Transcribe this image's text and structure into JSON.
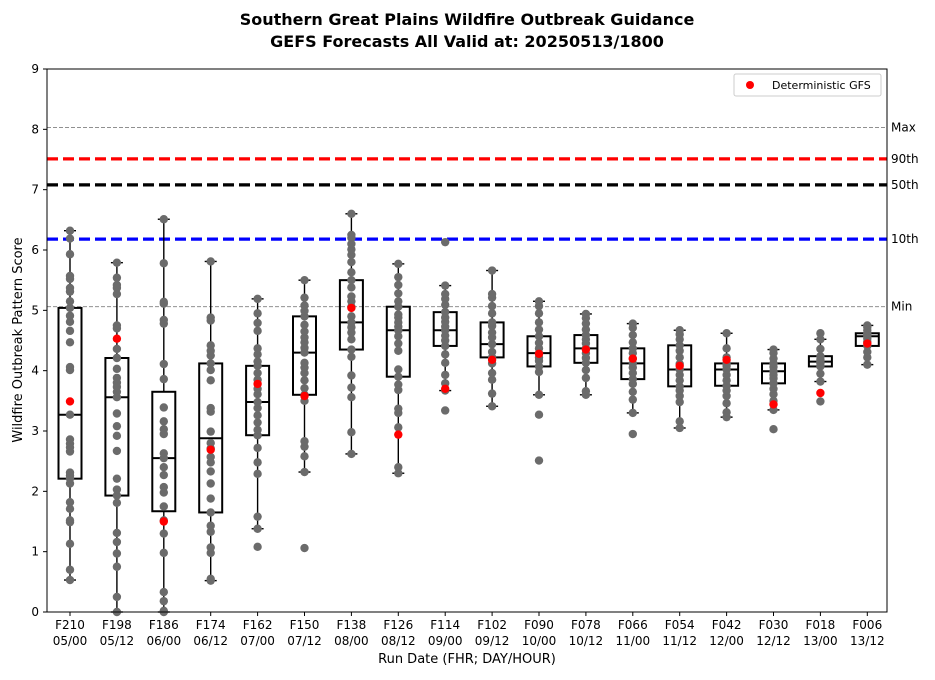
{
  "chart_data": {
    "type": "box",
    "title": "Southern Great Plains Wildfire Outbreak Guidance",
    "subtitle": "GEFS Forecasts All Valid at: 20250513/1800",
    "xlabel": "Run Date (FHR; DAY/HOUR)",
    "ylabel": "Wildfire Outbreak Pattern Score",
    "ylim": [
      0,
      9
    ],
    "yticks": [
      "0",
      "1",
      "2",
      "3",
      "4",
      "5",
      "6",
      "7",
      "8",
      "9"
    ],
    "grid": false,
    "legend": {
      "placement": "top-right",
      "label": "Deterministic GFS",
      "color": "#ff0000"
    },
    "colors": {
      "member": "#6b6b6b",
      "deterministic": "#ff0000",
      "box": "#000000"
    },
    "reference_lines": [
      {
        "label": "Max",
        "value": 8.03,
        "style": "dashed-thin",
        "color": "#808080"
      },
      {
        "label": "90th",
        "value": 7.51,
        "style": "dashed-thick",
        "color": "#ff0000"
      },
      {
        "label": "50th",
        "value": 7.08,
        "style": "dashed-thick",
        "color": "#000000"
      },
      {
        "label": "10th",
        "value": 6.18,
        "style": "dashed-thick",
        "color": "#0000ff"
      },
      {
        "label": "Min",
        "value": 5.06,
        "style": "dashed-thin",
        "color": "#808080"
      }
    ],
    "categories": [
      {
        "fhr": "F210",
        "date": "05/00",
        "wlo": 0.53,
        "q1": 2.21,
        "median": 3.27,
        "q3": 5.04,
        "whi": 6.32,
        "det": 3.49,
        "members": [
          0.53,
          0.7,
          1.13,
          1.49,
          1.52,
          1.71,
          1.82,
          2.13,
          2.21,
          2.26,
          2.31,
          2.66,
          2.73,
          2.79,
          2.86,
          3.27,
          4.01,
          4.06,
          4.47,
          4.66,
          4.81,
          4.91,
          5.04,
          5.15,
          5.31,
          5.37,
          5.52,
          5.57,
          5.93,
          6.19,
          6.32
        ]
      },
      {
        "fhr": "F198",
        "date": "05/12",
        "wlo": 0.0,
        "q1": 1.93,
        "median": 3.56,
        "q3": 4.21,
        "whi": 5.79,
        "det": 4.53,
        "members": [
          0.0,
          0.25,
          0.75,
          0.97,
          1.16,
          1.31,
          1.81,
          1.93,
          2.03,
          2.21,
          2.67,
          2.92,
          3.08,
          3.29,
          3.56,
          3.65,
          3.73,
          3.8,
          3.88,
          4.03,
          4.21,
          4.36,
          4.7,
          4.75,
          5.27,
          5.37,
          5.42,
          5.54,
          5.79
        ]
      },
      {
        "fhr": "F186",
        "date": "06/00",
        "wlo": 0.0,
        "q1": 1.67,
        "median": 2.55,
        "q3": 3.65,
        "whi": 6.51,
        "det": 1.5,
        "members": [
          0.0,
          0.02,
          0.18,
          0.33,
          0.98,
          1.3,
          1.52,
          1.75,
          1.98,
          2.07,
          2.27,
          2.4,
          2.55,
          2.63,
          2.95,
          3.03,
          3.16,
          3.39,
          3.86,
          4.11,
          4.78,
          4.84,
          5.11,
          5.14,
          5.78,
          6.51
        ]
      },
      {
        "fhr": "F174",
        "date": "06/12",
        "wlo": 0.52,
        "q1": 1.65,
        "median": 2.88,
        "q3": 4.12,
        "whi": 5.81,
        "det": 2.69,
        "members": [
          0.52,
          0.55,
          0.98,
          1.07,
          1.33,
          1.43,
          1.65,
          1.88,
          2.13,
          2.33,
          2.48,
          2.57,
          2.71,
          2.8,
          2.99,
          3.32,
          3.38,
          3.84,
          4.01,
          4.12,
          4.25,
          4.33,
          4.42,
          4.83,
          4.88,
          5.81
        ]
      },
      {
        "fhr": "F162",
        "date": "07/00",
        "wlo": 1.38,
        "q1": 2.93,
        "median": 3.48,
        "q3": 4.08,
        "whi": 5.19,
        "det": 3.78,
        "members": [
          1.08,
          1.38,
          1.58,
          2.29,
          2.48,
          2.72,
          2.93,
          3.02,
          3.14,
          3.26,
          3.38,
          3.48,
          3.61,
          3.7,
          3.85,
          3.96,
          4.08,
          4.15,
          4.27,
          4.37,
          4.66,
          4.79,
          4.95,
          5.19
        ]
      },
      {
        "fhr": "F150",
        "date": "07/12",
        "wlo": 2.32,
        "q1": 3.6,
        "median": 4.3,
        "q3": 4.9,
        "whi": 5.5,
        "det": 3.58,
        "members": [
          1.06,
          2.32,
          2.58,
          2.74,
          2.83,
          3.5,
          3.6,
          3.71,
          3.84,
          3.96,
          4.05,
          4.13,
          4.3,
          4.38,
          4.47,
          4.55,
          4.65,
          4.76,
          4.9,
          4.99,
          5.08,
          5.21,
          5.5
        ]
      },
      {
        "fhr": "F138",
        "date": "08/00",
        "wlo": 2.62,
        "q1": 4.35,
        "median": 4.8,
        "q3": 5.5,
        "whi": 6.6,
        "det": 5.04,
        "members": [
          2.62,
          2.98,
          3.56,
          3.72,
          3.92,
          4.23,
          4.35,
          4.52,
          4.63,
          4.72,
          4.8,
          4.9,
          5.06,
          5.15,
          5.23,
          5.38,
          5.5,
          5.63,
          5.8,
          5.92,
          6.01,
          6.1,
          6.2,
          6.25,
          6.6
        ]
      },
      {
        "fhr": "F126",
        "date": "08/12",
        "wlo": 2.3,
        "q1": 3.9,
        "median": 4.67,
        "q3": 5.06,
        "whi": 5.77,
        "det": 2.94,
        "members": [
          2.3,
          2.4,
          3.06,
          3.3,
          3.37,
          3.68,
          3.77,
          3.9,
          4.02,
          4.33,
          4.45,
          4.57,
          4.67,
          4.73,
          4.8,
          4.88,
          4.93,
          5.06,
          5.15,
          5.28,
          5.42,
          5.55,
          5.77
        ]
      },
      {
        "fhr": "F114",
        "date": "09/00",
        "wlo": 3.67,
        "q1": 4.41,
        "median": 4.67,
        "q3": 4.97,
        "whi": 5.41,
        "det": 3.7,
        "members": [
          3.34,
          3.67,
          3.79,
          3.93,
          4.13,
          4.27,
          4.41,
          4.5,
          4.58,
          4.67,
          4.73,
          4.81,
          4.88,
          4.97,
          5.09,
          5.19,
          5.27,
          5.41,
          6.13
        ]
      },
      {
        "fhr": "F102",
        "date": "09/12",
        "wlo": 3.41,
        "q1": 4.22,
        "median": 4.44,
        "q3": 4.8,
        "whi": 5.66,
        "det": 4.18,
        "members": [
          3.41,
          3.62,
          3.85,
          3.96,
          4.12,
          4.22,
          4.31,
          4.44,
          4.55,
          4.63,
          4.74,
          4.8,
          4.95,
          5.07,
          5.21,
          5.27,
          5.66
        ]
      },
      {
        "fhr": "F090",
        "date": "10/00",
        "wlo": 3.6,
        "q1": 4.07,
        "median": 4.29,
        "q3": 4.57,
        "whi": 5.15,
        "det": 4.28,
        "members": [
          2.51,
          3.27,
          3.6,
          3.98,
          4.07,
          4.16,
          4.22,
          4.29,
          4.37,
          4.46,
          4.57,
          4.68,
          4.8,
          4.95,
          5.07,
          5.15
        ]
      },
      {
        "fhr": "F078",
        "date": "10/12",
        "wlo": 3.6,
        "q1": 4.13,
        "median": 4.37,
        "q3": 4.59,
        "whi": 4.94,
        "det": 4.35,
        "members": [
          3.6,
          3.66,
          3.88,
          4.01,
          4.13,
          4.21,
          4.29,
          4.37,
          4.45,
          4.52,
          4.59,
          4.68,
          4.78,
          4.87,
          4.94
        ]
      },
      {
        "fhr": "F066",
        "date": "11/00",
        "wlo": 3.3,
        "q1": 3.86,
        "median": 4.12,
        "q3": 4.37,
        "whi": 4.78,
        "det": 4.2,
        "members": [
          2.95,
          3.3,
          3.52,
          3.65,
          3.78,
          3.86,
          3.96,
          4.05,
          4.12,
          4.2,
          4.29,
          4.37,
          4.47,
          4.59,
          4.71,
          4.78
        ]
      },
      {
        "fhr": "F054",
        "date": "11/12",
        "wlo": 3.05,
        "q1": 3.74,
        "median": 4.02,
        "q3": 4.42,
        "whi": 4.67,
        "det": 4.08,
        "members": [
          3.05,
          3.16,
          3.48,
          3.58,
          3.67,
          3.74,
          3.84,
          3.93,
          4.02,
          4.11,
          4.22,
          4.33,
          4.42,
          4.52,
          4.6,
          4.67
        ]
      },
      {
        "fhr": "F042",
        "date": "12/00",
        "wlo": 3.23,
        "q1": 3.75,
        "median": 4.02,
        "q3": 4.12,
        "whi": 4.62,
        "det": 4.18,
        "members": [
          3.23,
          3.31,
          3.46,
          3.58,
          3.67,
          3.75,
          3.84,
          3.93,
          4.02,
          4.08,
          4.12,
          4.22,
          4.37,
          4.62
        ]
      },
      {
        "fhr": "F030",
        "date": "12/12",
        "wlo": 3.35,
        "q1": 3.79,
        "median": 3.99,
        "q3": 4.12,
        "whi": 4.35,
        "det": 3.44,
        "members": [
          3.03,
          3.35,
          3.5,
          3.61,
          3.7,
          3.79,
          3.87,
          3.93,
          3.99,
          4.06,
          4.12,
          4.2,
          4.29,
          4.35
        ]
      },
      {
        "fhr": "F018",
        "date": "13/00",
        "wlo": 3.82,
        "q1": 4.07,
        "median": 4.15,
        "q3": 4.24,
        "whi": 4.52,
        "det": 3.63,
        "members": [
          3.49,
          3.82,
          3.95,
          4.07,
          4.12,
          4.15,
          4.19,
          4.24,
          4.36,
          4.52,
          4.62
        ]
      },
      {
        "fhr": "F006",
        "date": "13/12",
        "wlo": 4.1,
        "q1": 4.41,
        "median": 4.57,
        "q3": 4.62,
        "whi": 4.75,
        "det": 4.45,
        "members": [
          4.1,
          4.22,
          4.31,
          4.41,
          4.48,
          4.53,
          4.57,
          4.6,
          4.62,
          4.67,
          4.72,
          4.75
        ]
      }
    ]
  }
}
